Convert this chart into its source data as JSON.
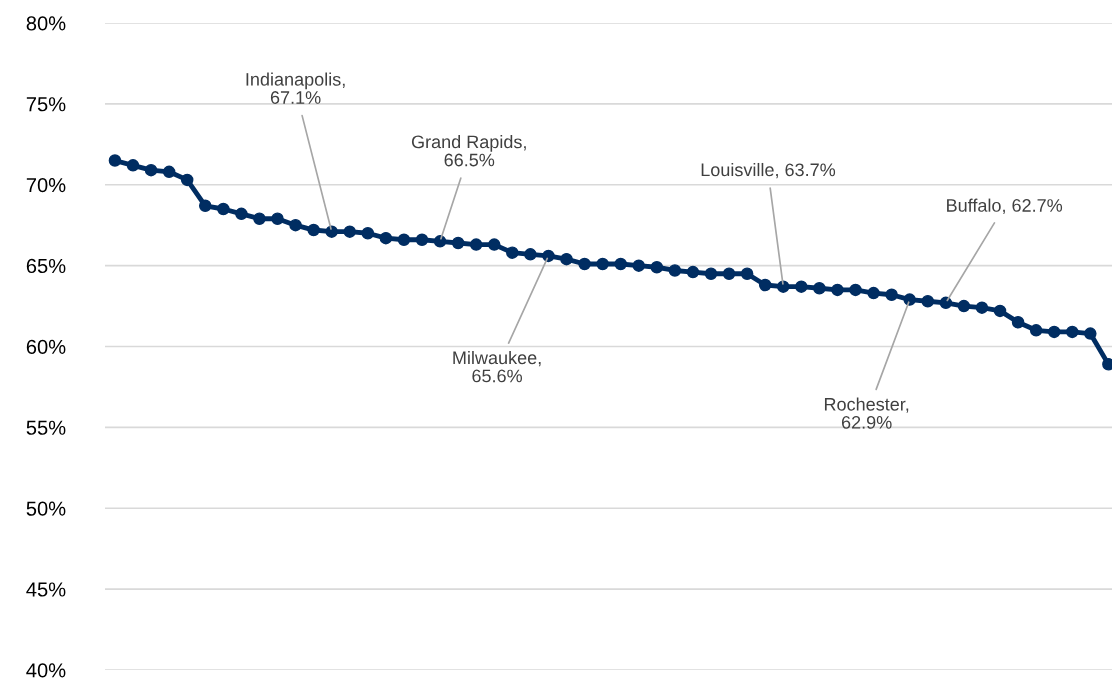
{
  "chart_data": {
    "type": "line",
    "categories": [
      null,
      null,
      null,
      null,
      null,
      null,
      null,
      null,
      null,
      null,
      null,
      null,
      null,
      null,
      null,
      null,
      null,
      null,
      null,
      null,
      null,
      null,
      null,
      null,
      null,
      null,
      null,
      null,
      null,
      null,
      null,
      null,
      null,
      null,
      null,
      null,
      null,
      null,
      null,
      null,
      null,
      null,
      null,
      null,
      null,
      null,
      null,
      null,
      null,
      null,
      null,
      null,
      null,
      null,
      null,
      null
    ],
    "series": [
      {
        "color": "#002d62",
        "values": [
          71.5,
          71.2,
          70.9,
          70.8,
          70.3,
          68.7,
          68.5,
          68.2,
          67.9,
          67.9,
          67.5,
          67.2,
          67.1,
          67.1,
          67.0,
          66.7,
          66.6,
          66.6,
          66.5,
          66.4,
          66.3,
          66.3,
          65.8,
          65.7,
          65.6,
          65.4,
          65.1,
          65.1,
          65.1,
          65.0,
          64.9,
          64.7,
          64.6,
          64.5,
          64.5,
          64.5,
          63.8,
          63.7,
          63.7,
          63.6,
          63.5,
          63.5,
          63.3,
          63.2,
          62.9,
          62.8,
          62.7,
          62.5,
          62.4,
          62.2,
          61.5,
          61.0,
          60.9,
          60.9,
          60.8,
          58.9
        ]
      }
    ],
    "ylim": [
      40,
      80
    ],
    "yticks": [
      {
        "value": 40,
        "label": "40%"
      },
      {
        "value": 45,
        "label": "45%"
      },
      {
        "value": 50,
        "label": "50%"
      },
      {
        "value": 55,
        "label": "55%"
      },
      {
        "value": 60,
        "label": "60%"
      },
      {
        "value": 65,
        "label": "65%"
      },
      {
        "value": 70,
        "label": "70%"
      },
      {
        "value": 75,
        "label": "75%"
      },
      {
        "value": 80,
        "label": "80%"
      }
    ],
    "tick_labels": "y",
    "grid": "y",
    "marker": "circle",
    "line_style": "solid",
    "annotations": [
      "Indianapolis,\n67.1%",
      "Grand Rapids,\n66.5%",
      "Milwaukee,\n65.6%",
      "Louisville, 63.7%",
      "Buffalo, 62.7%",
      "Rochester,\n62.9%"
    ]
  }
}
